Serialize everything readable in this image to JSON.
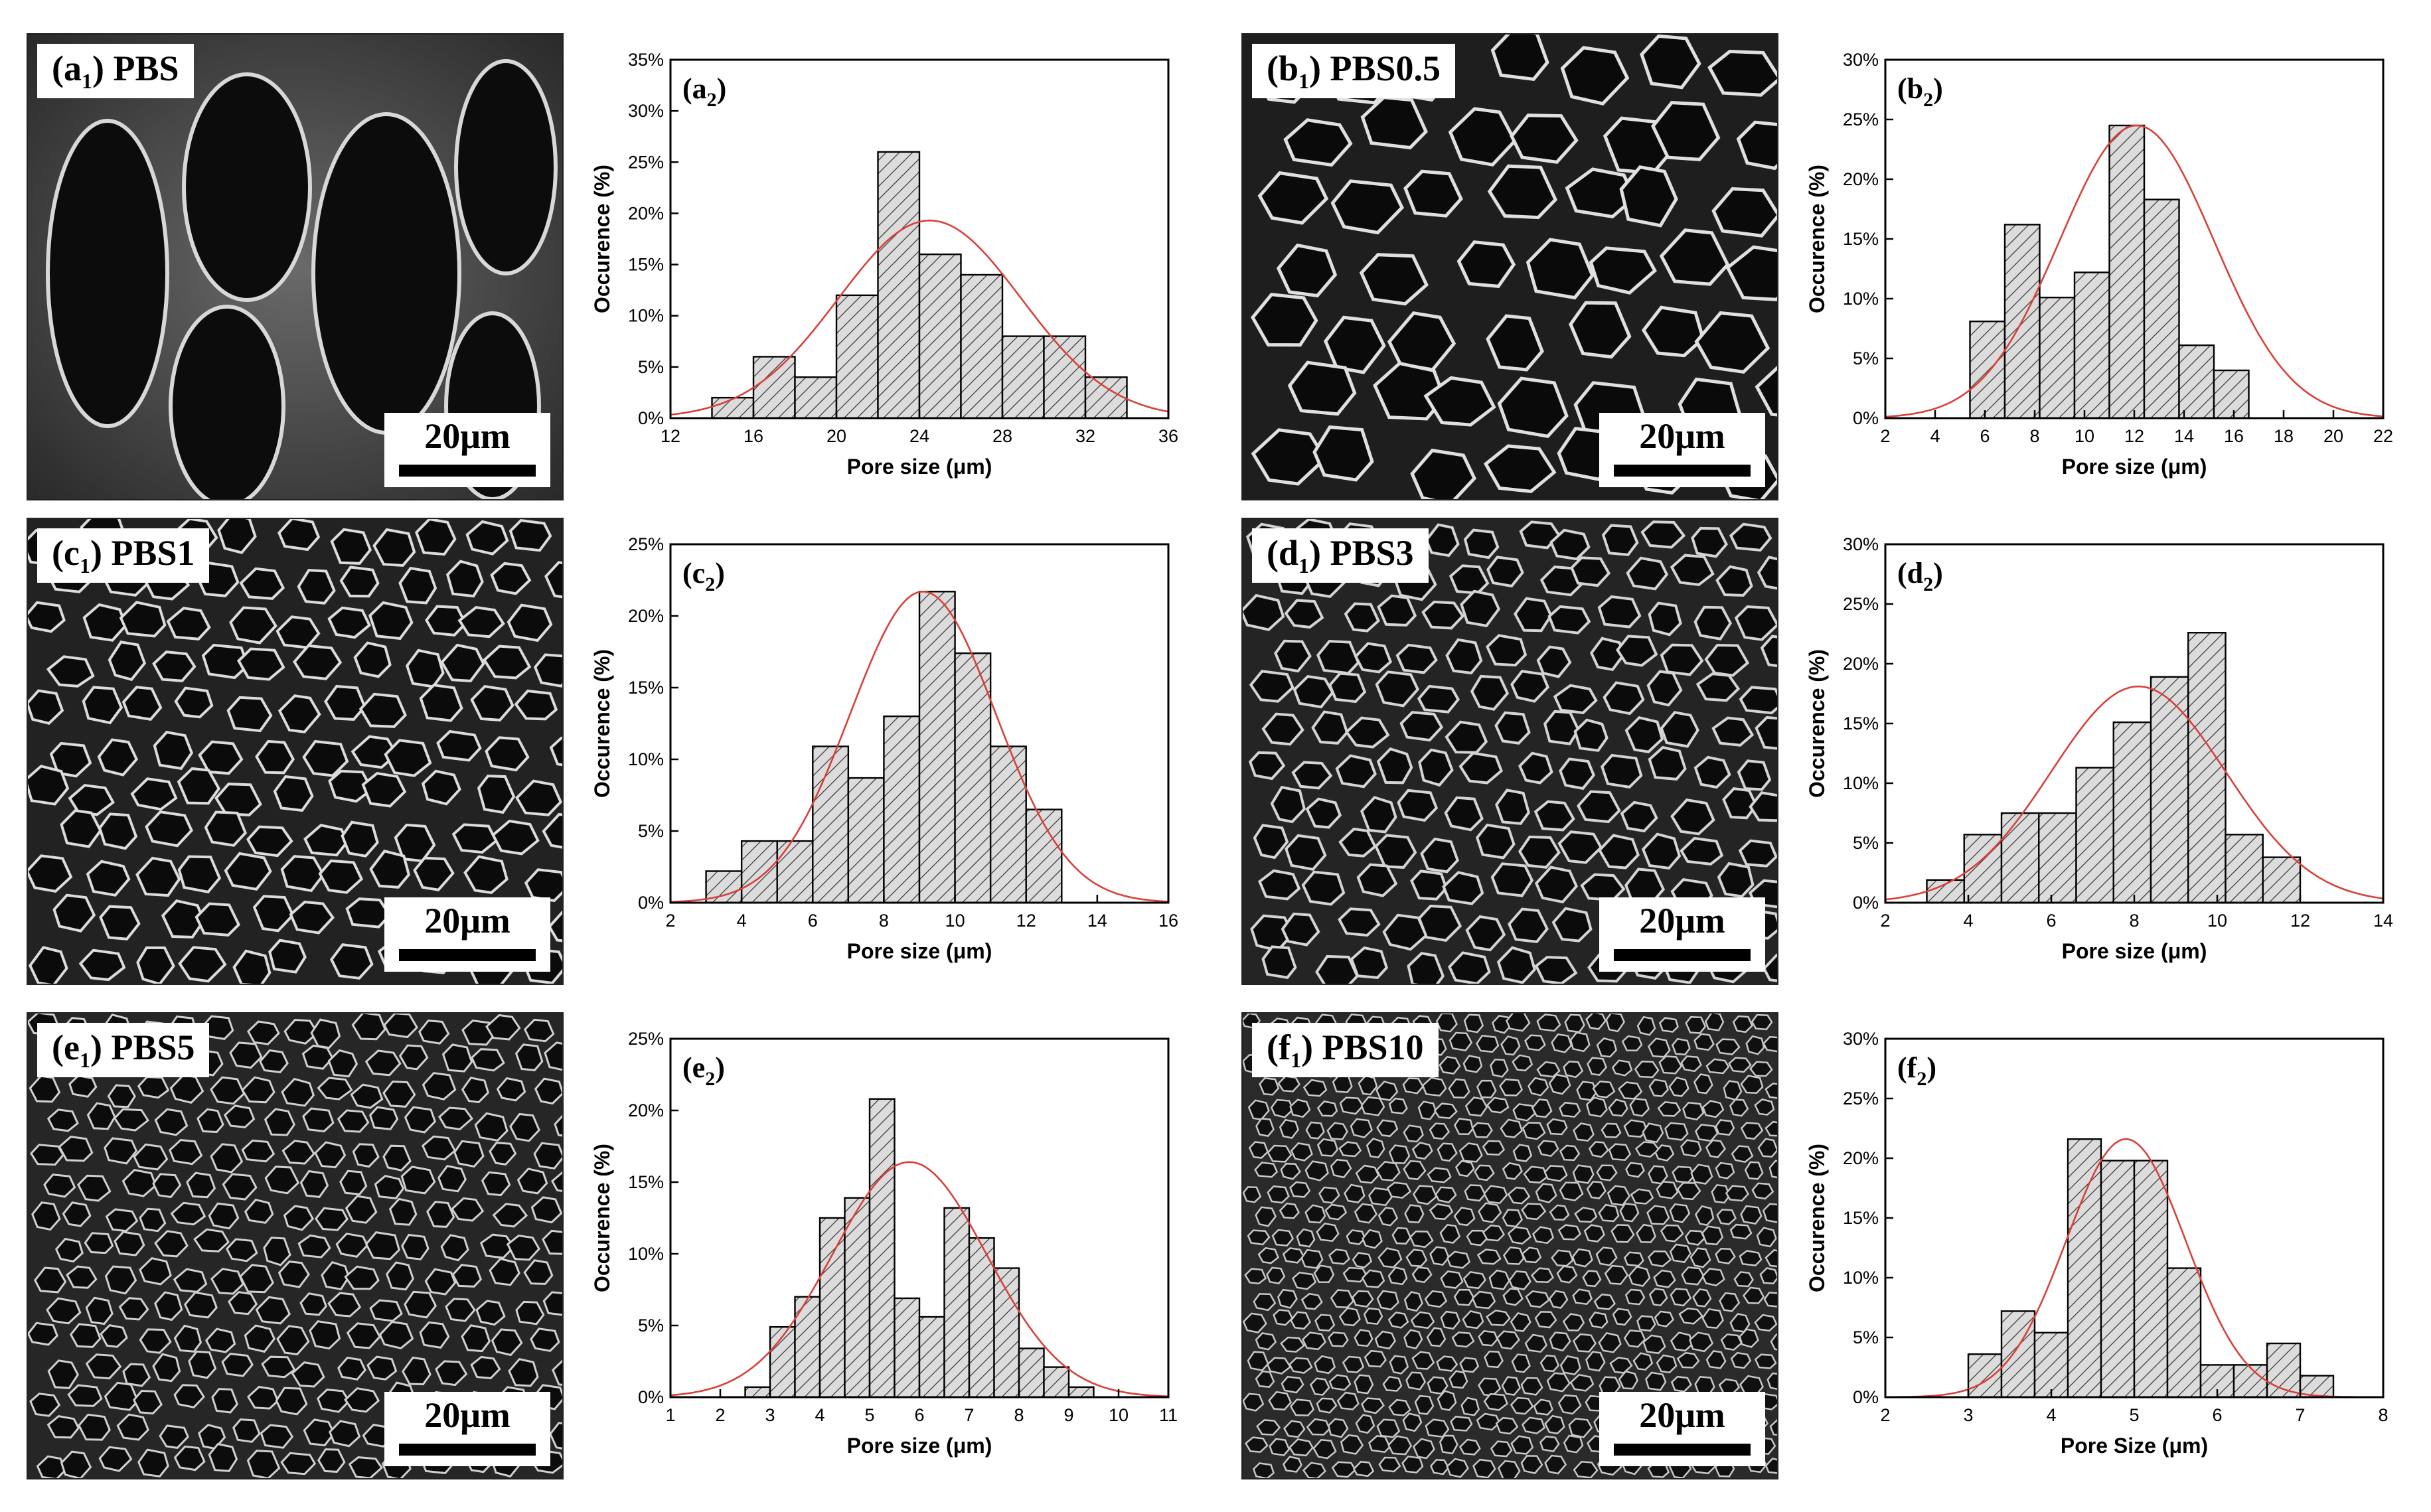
{
  "sem_panels": [
    {
      "tag_main": "(a",
      "tag_sub": "1",
      "tag_rest": ") PBS",
      "scale": "20μm"
    },
    {
      "tag_main": "(b",
      "tag_sub": "1",
      "tag_rest": ") PBS0.5",
      "scale": "20μm"
    },
    {
      "tag_main": "(c",
      "tag_sub": "1",
      "tag_rest": ") PBS1",
      "scale": "20μm"
    },
    {
      "tag_main": "(d",
      "tag_sub": "1",
      "tag_rest": ") PBS3",
      "scale": "20μm"
    },
    {
      "tag_main": "(e",
      "tag_sub": "1",
      "tag_rest": ") PBS5",
      "scale": "20μm"
    },
    {
      "tag_main": "(f",
      "tag_sub": "1",
      "tag_rest": ") PBS10",
      "scale": "20μm"
    }
  ],
  "chart_data": [
    {
      "type": "bar",
      "panel_label": "(a",
      "panel_sub": "2",
      "xlabel": "Pore size (μm)",
      "ylabel": "Occurence (%)",
      "xlim": [
        12,
        36
      ],
      "ylim": [
        0,
        35
      ],
      "xticks": [
        12,
        16,
        20,
        24,
        28,
        32,
        36
      ],
      "yticks": [
        0,
        5,
        10,
        15,
        20,
        25,
        30,
        35
      ],
      "bin_width": 2,
      "bin_starts": [
        14,
        16,
        18,
        20,
        22,
        24,
        26,
        28,
        30,
        32
      ],
      "values": [
        2,
        6,
        4,
        12,
        26,
        16,
        14,
        8,
        8,
        4
      ],
      "fit": {
        "mean": 24.5,
        "sd": 4.4,
        "peak": 19.3
      }
    },
    {
      "type": "bar",
      "panel_label": "(b",
      "panel_sub": "2",
      "xlabel": "Pore size (μm)",
      "ylabel": "Occurence (%)",
      "xlim": [
        2,
        22
      ],
      "ylim": [
        0,
        30
      ],
      "xticks": [
        2,
        4,
        6,
        8,
        10,
        12,
        14,
        16,
        18,
        20,
        22
      ],
      "yticks": [
        0,
        5,
        10,
        15,
        20,
        25,
        30
      ],
      "bin_width": 1.4,
      "bin_starts": [
        5.4,
        6.8,
        8.2,
        9.6,
        11.0,
        12.4,
        13.8,
        15.2,
        16.6
      ],
      "values": [
        8.1,
        16.2,
        10.1,
        12.2,
        24.5,
        18.3,
        6.1,
        4.0,
        0
      ],
      "fit": {
        "mean": 12.1,
        "sd": 3.1,
        "peak": 24.5
      }
    },
    {
      "type": "bar",
      "panel_label": "(c",
      "panel_sub": "2",
      "xlabel": "Pore size (μm)",
      "ylabel": "Occurence (%)",
      "xlim": [
        2,
        16
      ],
      "ylim": [
        0,
        25
      ],
      "xticks": [
        2,
        4,
        6,
        8,
        10,
        12,
        14,
        16
      ],
      "yticks": [
        0,
        5,
        10,
        15,
        20,
        25
      ],
      "bin_width": 1.0,
      "bin_starts": [
        3,
        4,
        5,
        6,
        7,
        8,
        9,
        10,
        11,
        12
      ],
      "values": [
        2.2,
        4.3,
        4.3,
        10.9,
        8.7,
        13.0,
        21.7,
        17.4,
        10.9,
        6.5
      ],
      "fit": {
        "mean": 9.1,
        "sd": 2.05,
        "peak": 21.7
      }
    },
    {
      "type": "bar",
      "panel_label": "(d",
      "panel_sub": "2",
      "xlabel": "Pore size (μm)",
      "ylabel": "Occurence (%)",
      "xlim": [
        2,
        14
      ],
      "ylim": [
        0,
        30
      ],
      "xticks": [
        2,
        4,
        6,
        8,
        10,
        12,
        14
      ],
      "yticks": [
        0,
        5,
        10,
        15,
        20,
        25,
        30
      ],
      "bin_width": 0.9,
      "bin_starts": [
        3.0,
        3.9,
        4.8,
        5.7,
        6.6,
        7.5,
        8.4,
        9.3,
        10.2,
        11.1
      ],
      "values": [
        1.9,
        5.7,
        7.5,
        7.5,
        11.3,
        15.1,
        18.9,
        22.6,
        5.7,
        3.8
      ],
      "fit": {
        "mean": 8.1,
        "sd": 2.1,
        "peak": 18.1
      }
    },
    {
      "type": "bar",
      "panel_label": "(e",
      "panel_sub": "2",
      "xlabel": "Pore size (μm)",
      "ylabel": "Occurence (%)",
      "xlim": [
        1,
        11
      ],
      "ylim": [
        0,
        25
      ],
      "xticks": [
        1,
        2,
        3,
        4,
        5,
        6,
        7,
        8,
        9,
        10,
        11
      ],
      "yticks": [
        0,
        5,
        10,
        15,
        20,
        25
      ],
      "bin_width": 0.5,
      "bin_starts": [
        2.5,
        3.0,
        3.5,
        4.0,
        4.5,
        5.0,
        5.5,
        6.0,
        6.5,
        7.0,
        7.5,
        8.0,
        8.5,
        9.0,
        9.5
      ],
      "values": [
        0.7,
        4.9,
        7.0,
        12.5,
        13.9,
        20.8,
        6.9,
        5.6,
        13.2,
        11.1,
        9.0,
        3.4,
        2.1,
        0.7,
        0.0
      ],
      "fit": {
        "mean": 5.8,
        "sd": 1.55,
        "peak": 16.4
      }
    },
    {
      "type": "bar",
      "panel_label": "(f",
      "panel_sub": "2",
      "xlabel": "Pore Size (μm)",
      "ylabel": "Occurence (%)",
      "xlim": [
        2,
        8
      ],
      "ylim": [
        0,
        30
      ],
      "xticks": [
        2,
        3,
        4,
        5,
        6,
        7,
        8
      ],
      "yticks": [
        0,
        5,
        10,
        15,
        20,
        25,
        30
      ],
      "bin_width": 0.4,
      "bin_starts": [
        3.0,
        3.4,
        3.8,
        4.2,
        4.6,
        5.0,
        5.4,
        5.8,
        6.2,
        6.6,
        7.0
      ],
      "values": [
        3.6,
        7.2,
        5.4,
        21.6,
        19.8,
        19.8,
        10.8,
        2.7,
        2.7,
        4.5,
        1.8
      ],
      "fit": {
        "mean": 4.9,
        "sd": 0.72,
        "peak": 21.6
      }
    }
  ],
  "colors": {
    "bar_fill": "#dcdcdc",
    "hatch": "#333333",
    "fit_line": "#d9403a",
    "axis": "#000000"
  }
}
